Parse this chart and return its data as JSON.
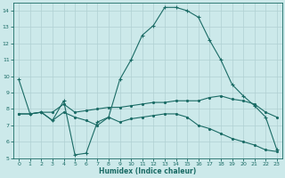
{
  "xlabel": "Humidex (Indice chaleur)",
  "xlim": [
    -0.5,
    23.5
  ],
  "ylim": [
    5,
    14.5
  ],
  "yticks": [
    5,
    6,
    7,
    8,
    9,
    10,
    11,
    12,
    13,
    14
  ],
  "xticks": [
    0,
    1,
    2,
    3,
    4,
    5,
    6,
    7,
    8,
    9,
    10,
    11,
    12,
    13,
    14,
    15,
    16,
    17,
    18,
    19,
    20,
    21,
    22,
    23
  ],
  "background_color": "#cce9ea",
  "grid_color": "#b0d0d2",
  "line_color": "#1a6b65",
  "line1_x": [
    0,
    1,
    2,
    3,
    4,
    5,
    6,
    7,
    8,
    9,
    10,
    11,
    12,
    13,
    14,
    15,
    16,
    17,
    18,
    19,
    20,
    21,
    22,
    23
  ],
  "line1_y": [
    9.8,
    7.7,
    7.8,
    7.3,
    8.5,
    5.2,
    5.3,
    7.2,
    7.5,
    9.8,
    11.0,
    12.5,
    13.1,
    14.2,
    14.2,
    14.0,
    13.6,
    12.2,
    11.0,
    9.5,
    8.8,
    8.2,
    7.5,
    5.5
  ],
  "line2_x": [
    0,
    1,
    2,
    3,
    4,
    5,
    6,
    7,
    8,
    9,
    10,
    11,
    12,
    13,
    14,
    15,
    16,
    17,
    18,
    19,
    20,
    21,
    22,
    23
  ],
  "line2_y": [
    7.7,
    7.7,
    7.8,
    7.8,
    8.3,
    7.8,
    7.9,
    8.0,
    8.1,
    8.1,
    8.2,
    8.3,
    8.4,
    8.4,
    8.5,
    8.5,
    8.5,
    8.7,
    8.8,
    8.6,
    8.5,
    8.3,
    7.8,
    7.5
  ],
  "line3_x": [
    0,
    1,
    2,
    3,
    4,
    5,
    6,
    7,
    8,
    9,
    10,
    11,
    12,
    13,
    14,
    15,
    16,
    17,
    18,
    19,
    20,
    21,
    22,
    23
  ],
  "line3_y": [
    7.7,
    7.7,
    7.8,
    7.3,
    7.8,
    7.5,
    7.3,
    7.0,
    7.5,
    7.2,
    7.4,
    7.5,
    7.6,
    7.7,
    7.7,
    7.5,
    7.0,
    6.8,
    6.5,
    6.2,
    6.0,
    5.8,
    5.5,
    5.4
  ]
}
